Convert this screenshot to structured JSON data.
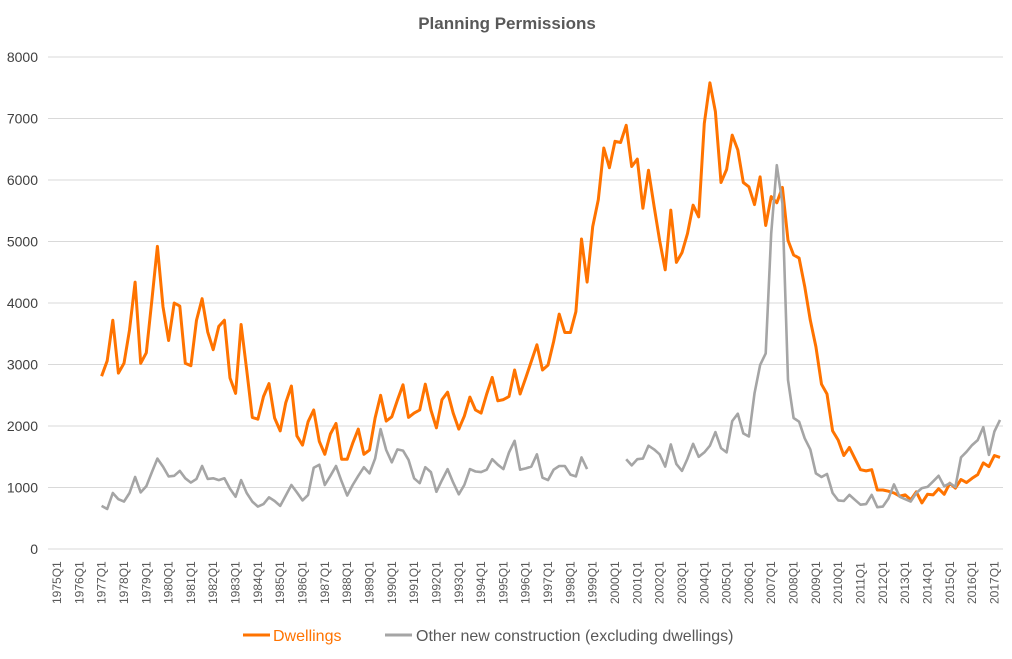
{
  "chart_data": {
    "type": "line",
    "title": "Planning Permissions",
    "xlabel": "",
    "ylabel": "",
    "ylim": [
      0,
      8000
    ],
    "y_ticks": [
      0,
      1000,
      2000,
      3000,
      4000,
      5000,
      6000,
      7000,
      8000
    ],
    "x_range": [
      "1975Q1",
      "2017Q2"
    ],
    "x_ticks": [
      "1975Q1",
      "1976Q1",
      "1977Q1",
      "1978Q1",
      "1979Q1",
      "1980Q1",
      "1981Q1",
      "1982Q1",
      "1983Q1",
      "1984Q1",
      "1985Q1",
      "1986Q1",
      "1987Q1",
      "1988Q1",
      "1989Q1",
      "1990Q1",
      "1991Q1",
      "1992Q1",
      "1993Q1",
      "1994Q1",
      "1995Q1",
      "1996Q1",
      "1997Q1",
      "1998Q1",
      "1999Q1",
      "2000Q1",
      "2001Q1",
      "2002Q1",
      "2003Q1",
      "2004Q1",
      "2005Q1",
      "2006Q1",
      "2007Q1",
      "2008Q1",
      "2009Q1",
      "2010Q1",
      "2011Q1",
      "2012Q1",
      "2013Q1",
      "2014Q1",
      "2015Q1",
      "2016Q1",
      "2017Q1"
    ],
    "frequency": "quarterly",
    "grid": true,
    "legend_position": "bottom",
    "series": [
      {
        "name": "Dwellings",
        "color": "#FF7300",
        "start": "1977Q1",
        "values": [
          2810,
          3060,
          3720,
          2860,
          3020,
          3560,
          4340,
          3020,
          3190,
          4050,
          4920,
          3940,
          3390,
          4000,
          3950,
          3020,
          2980,
          3720,
          4070,
          3530,
          3240,
          3620,
          3720,
          2780,
          2530,
          3650,
          2910,
          2140,
          2110,
          2480,
          2690,
          2130,
          1920,
          2380,
          2650,
          1840,
          1690,
          2070,
          2260,
          1750,
          1540,
          1870,
          2040,
          1460,
          1460,
          1720,
          1950,
          1540,
          1610,
          2130,
          2500,
          2080,
          2150,
          2420,
          2670,
          2140,
          2210,
          2260,
          2680,
          2260,
          1970,
          2430,
          2550,
          2210,
          1950,
          2160,
          2470,
          2260,
          2210,
          2520,
          2790,
          2410,
          2430,
          2480,
          2910,
          2520,
          2780,
          3050,
          3320,
          2910,
          2990,
          3370,
          3820,
          3520,
          3520,
          3860,
          5040,
          4340,
          5240,
          5680,
          6520,
          6200,
          6630,
          6610,
          6890,
          6220,
          6340,
          5540,
          6160,
          5570,
          5020,
          4540,
          5510,
          4660,
          4820,
          5130,
          5590,
          5400,
          6920,
          7580,
          7110,
          5960,
          6170,
          6730,
          6490,
          5960,
          5890,
          5600,
          6050,
          5260,
          5730,
          5630,
          5880,
          5020,
          4780,
          4730,
          4270,
          3720,
          3290,
          2680,
          2520,
          1920,
          1770,
          1520,
          1650,
          1470,
          1290,
          1270,
          1290,
          960,
          960,
          940,
          910,
          860,
          880,
          800,
          930,
          750,
          890,
          880,
          980,
          890,
          1070,
          990,
          1130,
          1080,
          1150,
          1210,
          1400,
          1340,
          1520,
          1490
        ]
      },
      {
        "name": "Other new construction (excluding dwellings)",
        "color": "#A5A5A5",
        "start": "1977Q1",
        "values": [
          700,
          650,
          910,
          810,
          770,
          910,
          1170,
          920,
          1020,
          1250,
          1470,
          1340,
          1180,
          1190,
          1270,
          1150,
          1080,
          1140,
          1350,
          1140,
          1150,
          1120,
          1150,
          980,
          850,
          1120,
          910,
          770,
          690,
          730,
          840,
          780,
          700,
          870,
          1040,
          920,
          790,
          880,
          1320,
          1370,
          1040,
          1190,
          1350,
          1100,
          870,
          1040,
          1190,
          1330,
          1230,
          1470,
          1950,
          1610,
          1410,
          1620,
          1600,
          1450,
          1150,
          1070,
          1330,
          1250,
          930,
          1120,
          1300,
          1080,
          890,
          1040,
          1300,
          1260,
          1250,
          1290,
          1460,
          1370,
          1300,
          1570,
          1760,
          1290,
          1310,
          1340,
          1540,
          1160,
          1120,
          1290,
          1350,
          1350,
          1210,
          1180,
          1490,
          1300,
          null,
          null,
          null,
          null,
          null,
          null,
          1460,
          1360,
          1460,
          1470,
          1680,
          1620,
          1540,
          1340,
          1700,
          1380,
          1270,
          1470,
          1710,
          1500,
          1570,
          1680,
          1900,
          1640,
          1570,
          2080,
          2200,
          1880,
          1830,
          2530,
          2990,
          3180,
          5130,
          6240,
          5620,
          2750,
          2130,
          2070,
          1800,
          1620,
          1230,
          1170,
          1220,
          910,
          790,
          780,
          880,
          800,
          720,
          730,
          880,
          680,
          690,
          820,
          1050,
          850,
          810,
          770,
          910,
          990,
          1010,
          1100,
          1190,
          1020,
          1070,
          1010,
          1490,
          1580,
          1690,
          1770,
          1980,
          1530,
          1910,
          2100
        ]
      }
    ]
  }
}
